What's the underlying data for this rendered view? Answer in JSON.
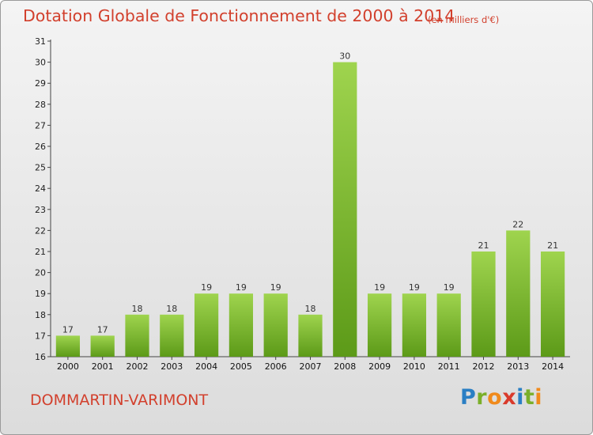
{
  "title": "Dotation Globale de Fonctionnement de 2000 à 2014",
  "subtitle": "(en milliers d'€)",
  "commune": "DOMMARTIN-VARIMONT",
  "logo": {
    "text": "Proxiti",
    "letter_colors": [
      "#2a7fc4",
      "#7aaf29",
      "#f08a1c",
      "#d93a2b",
      "#2a7fc4",
      "#7aaf29",
      "#f08a1c"
    ]
  },
  "colors": {
    "title": "#d2402d",
    "bar_top": "#9fd44e",
    "bar_bottom": "#5c9a18",
    "axis": "#444444"
  },
  "chart_data": {
    "type": "bar",
    "categories": [
      "2000",
      "2001",
      "2002",
      "2003",
      "2004",
      "2005",
      "2006",
      "2007",
      "2008",
      "2009",
      "2010",
      "2011",
      "2012",
      "2013",
      "2014"
    ],
    "values": [
      17,
      17,
      18,
      18,
      19,
      19,
      19,
      18,
      30,
      19,
      19,
      19,
      21,
      22,
      21
    ],
    "ylim": [
      16,
      31
    ],
    "yticks": [
      16,
      17,
      18,
      19,
      20,
      21,
      22,
      23,
      24,
      25,
      26,
      27,
      28,
      29,
      30,
      31
    ],
    "grid": false,
    "legend": "none"
  }
}
